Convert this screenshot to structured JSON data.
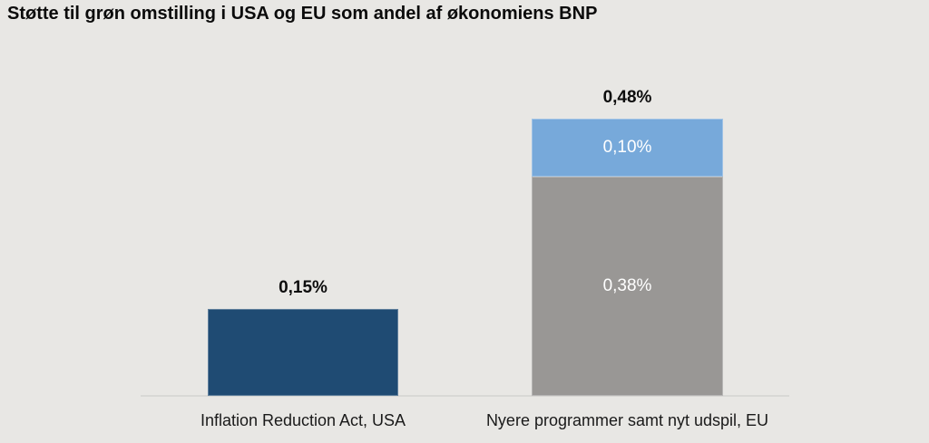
{
  "title": "Støtte til grøn omstilling i USA og EU som andel af økonomiens BNP",
  "colors": {
    "background": "#E8E7E4",
    "title_text": "#0B0B0B",
    "data_label_dark": "#0D0D0D",
    "data_label_light": "#FFFFFF",
    "axis_line": "#D8D8D5",
    "bar_dark_blue": "#1F4B73",
    "bar_gray": "#999795",
    "bar_light_blue": "#77A9DA"
  },
  "chart_data": {
    "type": "bar",
    "stacked": true,
    "title": "Støtte til grøn omstilling i USA og EU som andel af økonomiens BNP",
    "ylim": [
      0,
      0.48
    ],
    "grid": false,
    "legend": false,
    "y_axis_visible": false,
    "categories": [
      "Inflation Reduction Act, USA",
      "Nyere programmer samt nyt udspil, EU"
    ],
    "bars": [
      {
        "category": "Inflation Reduction Act, USA",
        "total": 0.15,
        "total_label": "0,15%",
        "segments": [
          {
            "value": 0.15,
            "label": "",
            "color_key": "bar_dark_blue"
          }
        ]
      },
      {
        "category": "Nyere programmer samt nyt udspil, EU",
        "total": 0.48,
        "total_label": "0,48%",
        "segments": [
          {
            "value": 0.38,
            "label": "0,38%",
            "color_key": "bar_gray"
          },
          {
            "value": 0.1,
            "label": "0,10%",
            "color_key": "bar_light_blue"
          }
        ]
      }
    ]
  }
}
